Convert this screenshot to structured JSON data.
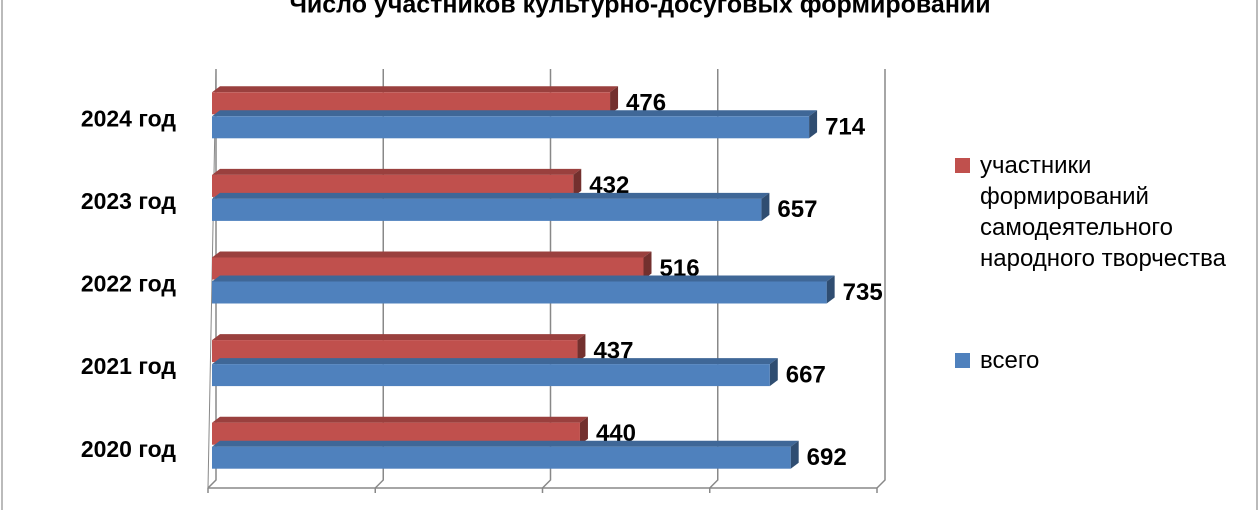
{
  "chart_data": {
    "type": "bar3d-horizontal",
    "title": "Число участников культурно-досуговых формирований",
    "categories": [
      "2020 год",
      "2021 год",
      "2022 год",
      "2023 год",
      "2024 год"
    ],
    "series": [
      {
        "name": "участники формирований самодеятельного народного творчества",
        "color": "#c0504d",
        "values": [
          440,
          437,
          516,
          432,
          476
        ]
      },
      {
        "name": "всего",
        "color": "#4f81bd",
        "values": [
          692,
          667,
          735,
          657,
          714
        ]
      }
    ],
    "xlim": [
      0,
      800
    ],
    "xticks": [
      0,
      200,
      400,
      600,
      800
    ],
    "grid": true,
    "legend": "right"
  }
}
